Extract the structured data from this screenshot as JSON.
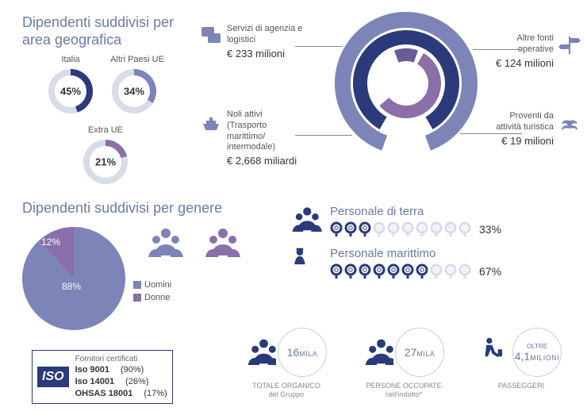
{
  "colors": {
    "primary": "#2a3a7a",
    "secondary": "#7c84b8",
    "accent": "#8a6fa8",
    "accent2": "#6b5a9a",
    "light": "#d8dce8",
    "title": "#6b7ba8",
    "text": "#555555",
    "grey": "#cccccc"
  },
  "geo": {
    "title": "Dipendenti suddivisi per area geografica",
    "donut_stroke_width": 8,
    "items": [
      {
        "label": "Italia",
        "pct": 45,
        "pct_text": "45%",
        "color": "#2a3a7a",
        "track": "#d8dce8"
      },
      {
        "label": "Altri Paesi UE",
        "pct": 34,
        "pct_text": "34%",
        "color": "#7c84b8",
        "track": "#d8dce8"
      },
      {
        "label": "Extra UE",
        "pct": 21,
        "pct_text": "21%",
        "color": "#8a6fa8",
        "track": "#d8dce8"
      }
    ]
  },
  "revenue": {
    "rings": [
      {
        "radius": 80,
        "stroke": 20,
        "color": "#7c84b8",
        "start": -160,
        "sweep": 320
      },
      {
        "radius": 58,
        "stroke": 18,
        "color": "#2a3a7a",
        "start": -150,
        "sweep": 300
      },
      {
        "radius": 36,
        "stroke": 16,
        "color": "#8a6fa8",
        "start": 30,
        "sweep": 200
      },
      {
        "radius": 36,
        "stroke": 16,
        "color": "#6b5a9a",
        "start": -20,
        "sweep": 40
      }
    ],
    "callouts": [
      {
        "key": "agency",
        "icon": "chat",
        "title": "Servizi di agenzia e logistici",
        "value": "€ 233 milioni",
        "pos": "tl"
      },
      {
        "key": "freight",
        "icon": "ship",
        "title": "Noli attivi (Trasporto marittimo/ intermodale)",
        "value": "€ 2,668 miliardi",
        "pos": "bl"
      },
      {
        "key": "other",
        "icon": "sign",
        "title": "Altre fonti operative",
        "value": "€ 124 milioni",
        "pos": "tr"
      },
      {
        "key": "tourism",
        "icon": "palm",
        "title": "Proventi da attività turistica",
        "value": "€ 19 milioni",
        "pos": "br"
      }
    ]
  },
  "gender": {
    "title": "Dipendenti suddivisi per genere",
    "slices": [
      {
        "label": "Uomini",
        "pct": 88,
        "pct_text": "88%",
        "color": "#7c84b8"
      },
      {
        "label": "Donne",
        "pct": 12,
        "pct_text": "12%",
        "color": "#8a6fa8"
      }
    ]
  },
  "iso": {
    "logo": "ISO",
    "header": "Fornitori certificati",
    "rows": [
      {
        "name": "Iso 9001",
        "pct": "(90%)"
      },
      {
        "name": "Iso 14001",
        "pct": "(26%)"
      },
      {
        "name": "OHSAS 18001",
        "pct": "(17%)"
      }
    ]
  },
  "personnel": {
    "blocks": [
      {
        "title": "Personale di terra",
        "icon": "people",
        "filled": 3,
        "total": 10,
        "pct_text": "33%",
        "fill_color": "#2a3a7a",
        "empty_color": "#d8dce8"
      },
      {
        "title": "Personale marittimo",
        "icon": "sailor",
        "filled": 7,
        "total": 10,
        "pct_text": "67%",
        "fill_color": "#2a3a7a",
        "empty_color": "#d8dce8"
      }
    ]
  },
  "stats": [
    {
      "icon": "people",
      "num": "16",
      "unit": "MILA",
      "caption1": "TOTALE ORGANICO",
      "caption2": "del Gruppo"
    },
    {
      "icon": "people",
      "num": "27",
      "unit": "MILA",
      "caption1": "PERSONE OCCUPATE",
      "caption2": "nell'indotto*"
    },
    {
      "icon": "traveler",
      "pre": "OLTRE",
      "num": "4,1",
      "unit": "MILIONI",
      "caption1": "PASSEGGERI",
      "caption2": ""
    }
  ]
}
